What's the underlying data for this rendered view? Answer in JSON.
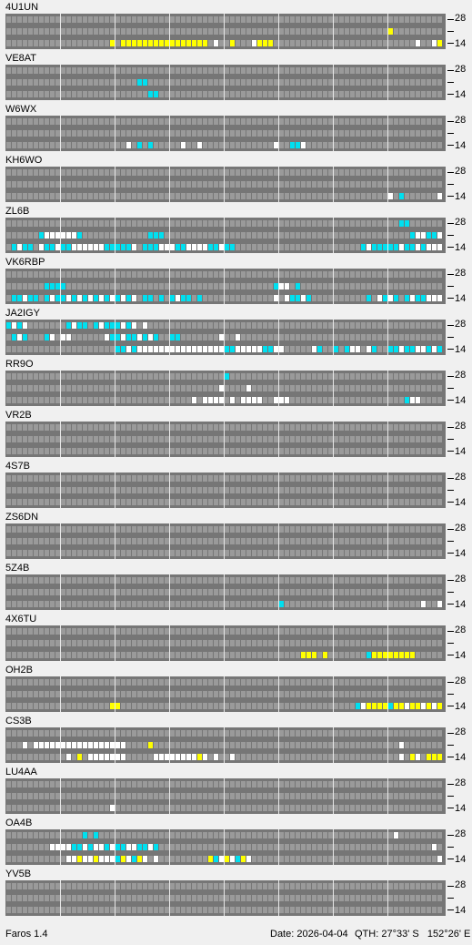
{
  "app_name": "Faros 1.4",
  "status": {
    "date": "Date: 2026-04-04",
    "qth": "QTH: 27°33' S   152°26' E"
  },
  "axis_top": "28",
  "axis_bottom": "14",
  "colors": {
    "background": "#f0f0f0",
    "panel": "#767676",
    "empty": "#9a9a9a",
    "white": "#ffffff",
    "cyan": "#00e0f0",
    "yellow": "#ffff00",
    "grid": "#e8e8e8"
  },
  "beacons": [
    {
      "call": "4U1UN",
      "rows": [
        "................................................................................",
        "......................................................................Y.........",
        "...................Y.YYYYYYYYYYYYYYYY.W..Y...WYYY..........................W..WYWWWW..."
      ]
    },
    {
      "call": "VE8AT",
      "rows": [
        "................................................................................",
        "........................CC......................................................",
        "..........................CC...................................................."
      ]
    },
    {
      "call": "W6WX",
      "rows": [
        "................................................................................",
        "................................................................................",
        "......................W.C.C.....W..W.............W..CCW.........................."
      ]
    },
    {
      "call": "KH6WO",
      "rows": [
        "................................................................................",
        "................................................................................",
        "......................................................................W.C......W.."
      ]
    },
    {
      "call": "ZL6B",
      "rows": [
        "........................................................................CC......",
        "......CWWWWWWC............CCC.............................................CWWCCWC.",
        ".CWCC.WCCWCCWWWWWWCCCCCW.CCCWWWCCWWWWCCWCC.......................CWCCCCCWCCWCWWWWWWC"
      ]
    },
    {
      "call": "VK6RBP",
      "rows": [
        "................................................................................",
        ".......CCCC......................................CWW.C...........................C",
        ".CCWCC.CWCCWCWCWCWCWCWCW.CC.C.CWCC.C.............W.WCCWC..........C.WCWC.CWCCWWWC"
      ]
    },
    {
      "call": "JA2IGY",
      "rows": [
        "CWCW.......CWCC.CWCCCWCW.W.......................................................CWWWWCWCC",
        ".CWC...CW.WW......WCCWCCWCWC..CC.......W..W......................................C..WCWCC",
        "....................CCWCWWWWWWWWWWWWWWWWCCWWWWWCCWW.....WC..C.CWW.WC..CCWCCWWCWCWWCCW..."
      ]
    },
    {
      "call": "RR9O",
      "rows": [
        "........................................C.......................................",
        ".......................................W....W...................................",
        "..................................W.WWWW.W.WWWW..WWW.....................CWW......"
      ]
    },
    {
      "call": "VR2B",
      "rows": [
        "................................................................................",
        "................................................................................",
        "................................................................................"
      ]
    },
    {
      "call": "4S7B",
      "rows": [
        "................................................................................",
        "................................................................................",
        "................................................................................"
      ]
    },
    {
      "call": "ZS6DN",
      "rows": [
        "................................................................................",
        "................................................................................",
        "................................................................................"
      ]
    },
    {
      "call": "5Z4B",
      "rows": [
        "................................................................................",
        "................................................................................",
        "..................................................C.........................W..W.."
      ]
    },
    {
      "call": "4X6TU",
      "rows": [
        "................................................................................",
        "................................................................................",
        "......................................................YYY.Y.......CYYYYYYYY.....Y."
      ]
    },
    {
      "call": "OH2B",
      "rows": [
        "................................................................................",
        "................................................................................",
        "...................YY...........................................CWYYYYCYYWYYWYWYYYY......CW"
      ]
    },
    {
      "call": "CS3B",
      "rows": [
        "................................................................................",
        "...W.WWWWWWWWWWWWWWWWW....Y.............................................W.....",
        "...........W.Y.WWWWWWW.....WWWWWWWWYW.W..W..............................W.YW.YYY.."
      ]
    },
    {
      "call": "LU4AA",
      "rows": [
        "................................................................................",
        "................................................................................",
        "...................W............................................................"
      ]
    },
    {
      "call": "OA4B",
      "rows": [
        "..............C.C......................................................W...........",
        "........WWWWCCWCWWCWCCWWCCWC..................................................W.Y.W.",
        "...........WWYWWYWWWCYWCYW.W.........YCWYWCYW..................................WYWW..."
      ]
    },
    {
      "call": "YV5B",
      "rows": [
        "................................................................................",
        "................................................................................",
        "................................................................................"
      ]
    }
  ]
}
